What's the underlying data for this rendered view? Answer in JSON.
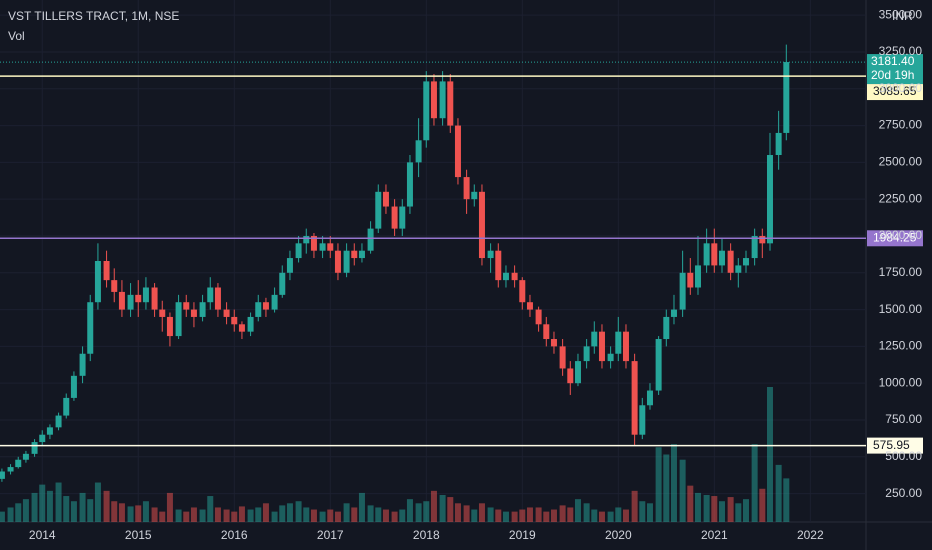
{
  "chart_data": {
    "type": "candlestick",
    "title": "VST TILLERS TRACT, 1M, NSE",
    "currency": "INR",
    "up_color": "#26a69a",
    "down_color": "#ef5350",
    "grid": true,
    "x": [
      2013.58,
      2013.67,
      2013.75,
      2013.83,
      2013.92,
      2014,
      2014.08,
      2014.17,
      2014.25,
      2014.33,
      2014.42,
      2014.5,
      2014.58,
      2014.67,
      2014.75,
      2014.83,
      2014.92,
      2015,
      2015.08,
      2015.17,
      2015.25,
      2015.33,
      2015.42,
      2015.5,
      2015.58,
      2015.67,
      2015.75,
      2015.83,
      2015.92,
      2016,
      2016.08,
      2016.17,
      2016.25,
      2016.33,
      2016.42,
      2016.5,
      2016.58,
      2016.67,
      2016.75,
      2016.83,
      2016.92,
      2017,
      2017.08,
      2017.17,
      2017.25,
      2017.33,
      2017.42,
      2017.5,
      2017.58,
      2017.67,
      2017.75,
      2017.83,
      2017.92,
      2018,
      2018.08,
      2018.17,
      2018.25,
      2018.33,
      2018.42,
      2018.5,
      2018.58,
      2018.67,
      2018.75,
      2018.83,
      2018.92,
      2019,
      2019.08,
      2019.17,
      2019.25,
      2019.33,
      2019.42,
      2019.5,
      2019.58,
      2019.67,
      2019.75,
      2019.83,
      2019.92,
      2020,
      2020.08,
      2020.17,
      2020.25,
      2020.33,
      2020.42,
      2020.5,
      2020.58,
      2020.67,
      2020.75,
      2020.83,
      2020.92,
      2021,
      2021.08,
      2021.17,
      2021.25,
      2021.33,
      2021.42,
      2021.5,
      2021.58,
      2021.67,
      2021.75
    ],
    "open": [
      350,
      400,
      430,
      480,
      520,
      600,
      650,
      700,
      780,
      900,
      1050,
      1200,
      1550,
      1830,
      1700,
      1620,
      1500,
      1600,
      1550,
      1650,
      1500,
      1450,
      1320,
      1550,
      1500,
      1450,
      1550,
      1650,
      1500,
      1450,
      1400,
      1350,
      1450,
      1550,
      1500,
      1600,
      1750,
      1850,
      1950,
      2000,
      1900,
      1950,
      1900,
      1750,
      1900,
      1850,
      1900,
      2050,
      2300,
      2200,
      2050,
      2200,
      2500,
      2650,
      3050,
      2800,
      3050,
      2750,
      2400,
      2250,
      2300,
      1850,
      1900,
      1700,
      1750,
      1700,
      1550,
      1500,
      1400,
      1300,
      1250,
      1100,
      1000,
      1150,
      1250,
      1350,
      1150,
      1200,
      1350,
      1150,
      650,
      850,
      950,
      1300,
      1450,
      1500,
      1750,
      1650,
      1800,
      1950,
      1800,
      1900,
      1750,
      1800,
      1850,
      2000,
      1950,
      2550,
      2700
    ],
    "high": [
      420,
      450,
      500,
      540,
      620,
      680,
      720,
      800,
      930,
      1080,
      1250,
      1600,
      1950,
      1900,
      1780,
      1700,
      1680,
      1700,
      1720,
      1680,
      1560,
      1480,
      1600,
      1600,
      1550,
      1600,
      1720,
      1680,
      1550,
      1500,
      1420,
      1480,
      1600,
      1580,
      1650,
      1800,
      1900,
      2000,
      2050,
      2020,
      2000,
      2000,
      1950,
      1950,
      1950,
      1950,
      2100,
      2350,
      2350,
      2250,
      2250,
      2550,
      2800,
      3120,
      3100,
      3120,
      3100,
      2800,
      2450,
      2350,
      2350,
      1950,
      1950,
      1800,
      1800,
      1720,
      1600,
      1520,
      1450,
      1350,
      1300,
      1150,
      1200,
      1300,
      1420,
      1400,
      1250,
      1450,
      1400,
      1200,
      900,
      1000,
      1320,
      1500,
      1600,
      1900,
      1850,
      2000,
      2050,
      2050,
      1980,
      1950,
      1850,
      1900,
      2050,
      2050,
      2700,
      2850,
      3300
    ],
    "low": [
      330,
      380,
      420,
      460,
      500,
      580,
      620,
      680,
      760,
      880,
      1000,
      1150,
      1500,
      1650,
      1550,
      1450,
      1450,
      1450,
      1500,
      1450,
      1350,
      1250,
      1300,
      1450,
      1380,
      1420,
      1500,
      1450,
      1400,
      1350,
      1300,
      1320,
      1420,
      1450,
      1480,
      1580,
      1700,
      1820,
      1880,
      1850,
      1850,
      1850,
      1700,
      1720,
      1800,
      1820,
      1880,
      2020,
      2150,
      2000,
      2000,
      2150,
      2400,
      2600,
      2750,
      2750,
      2700,
      2350,
      2150,
      2200,
      1800,
      1750,
      1650,
      1650,
      1650,
      1500,
      1450,
      1350,
      1250,
      1200,
      1050,
      920,
      980,
      1100,
      1200,
      1100,
      1100,
      1150,
      1100,
      580,
      620,
      820,
      920,
      1250,
      1400,
      1450,
      1600,
      1600,
      1750,
      1750,
      1750,
      1700,
      1650,
      1750,
      1800,
      1850,
      1900,
      2450,
      2650
    ],
    "close": [
      400,
      430,
      480,
      520,
      600,
      650,
      700,
      780,
      900,
      1050,
      1200,
      1550,
      1830,
      1700,
      1620,
      1500,
      1600,
      1550,
      1650,
      1500,
      1450,
      1320,
      1550,
      1500,
      1450,
      1550,
      1650,
      1500,
      1450,
      1400,
      1350,
      1450,
      1550,
      1500,
      1600,
      1750,
      1850,
      1950,
      2000,
      1900,
      1950,
      1900,
      1750,
      1900,
      1850,
      1900,
      2050,
      2300,
      2200,
      2050,
      2200,
      2500,
      2650,
      3050,
      2800,
      3050,
      2750,
      2400,
      2250,
      2300,
      1850,
      1900,
      1700,
      1750,
      1700,
      1550,
      1500,
      1400,
      1300,
      1250,
      1100,
      1000,
      1150,
      1250,
      1350,
      1150,
      1200,
      1350,
      1150,
      650,
      850,
      950,
      1300,
      1450,
      1500,
      1750,
      1650,
      1800,
      1950,
      1800,
      1900,
      1750,
      1800,
      1850,
      2000,
      1950,
      2550,
      2700,
      3181.4
    ],
    "volume": {
      "name": "Vol",
      "values": [
        10,
        14,
        18,
        22,
        28,
        36,
        30,
        38,
        25,
        20,
        28,
        22,
        38,
        30,
        20,
        18,
        15,
        16,
        20,
        14,
        10,
        28,
        12,
        10,
        14,
        12,
        25,
        14,
        12,
        10,
        15,
        12,
        14,
        18,
        10,
        16,
        18,
        20,
        14,
        12,
        10,
        12,
        10,
        18,
        14,
        28,
        16,
        14,
        12,
        10,
        12,
        22,
        18,
        20,
        30,
        26,
        24,
        18,
        16,
        12,
        18,
        14,
        12,
        10,
        10,
        12,
        14,
        14,
        10,
        12,
        16,
        14,
        22,
        18,
        12,
        10,
        10,
        14,
        12,
        30,
        20,
        18,
        72,
        65,
        75,
        60,
        35,
        28,
        26,
        25,
        20,
        24,
        18,
        22,
        75,
        32,
        130,
        55,
        42
      ]
    },
    "xlim": [
      2013.56,
      2022.58
    ],
    "xticks": [
      2014,
      2015,
      2016,
      2017,
      2018,
      2019,
      2020,
      2021,
      2022
    ],
    "ylim": [
      57,
      3603
    ],
    "yticks": [
      {
        "value": 250,
        "label": "250.00"
      },
      {
        "value": 500,
        "label": "500.00"
      },
      {
        "value": 750,
        "label": "750.00"
      },
      {
        "value": 1000,
        "label": "1000.00"
      },
      {
        "value": 1250,
        "label": "1250.00"
      },
      {
        "value": 1500,
        "label": "1500.00"
      },
      {
        "value": 1750,
        "label": "1750.00"
      },
      {
        "value": 2000,
        "label": "2000.00"
      },
      {
        "value": 2250,
        "label": "2250.00"
      },
      {
        "value": 2500,
        "label": "2500.00"
      },
      {
        "value": 2750,
        "label": "2750.00"
      },
      {
        "value": 3000,
        "label": "3000.00"
      },
      {
        "value": 3250,
        "label": "3250.00"
      },
      {
        "value": 3500,
        "label": "3500.00"
      }
    ],
    "levels": [
      {
        "value": 3085.65,
        "color": "#fff9c4"
      },
      {
        "value": 1984.25,
        "color": "#9575cd"
      },
      {
        "value": 575.95,
        "color": "#fffde7"
      }
    ],
    "last_price": {
      "value": 3181.4,
      "label": "3181.40",
      "countdown": "20d 19h"
    }
  }
}
